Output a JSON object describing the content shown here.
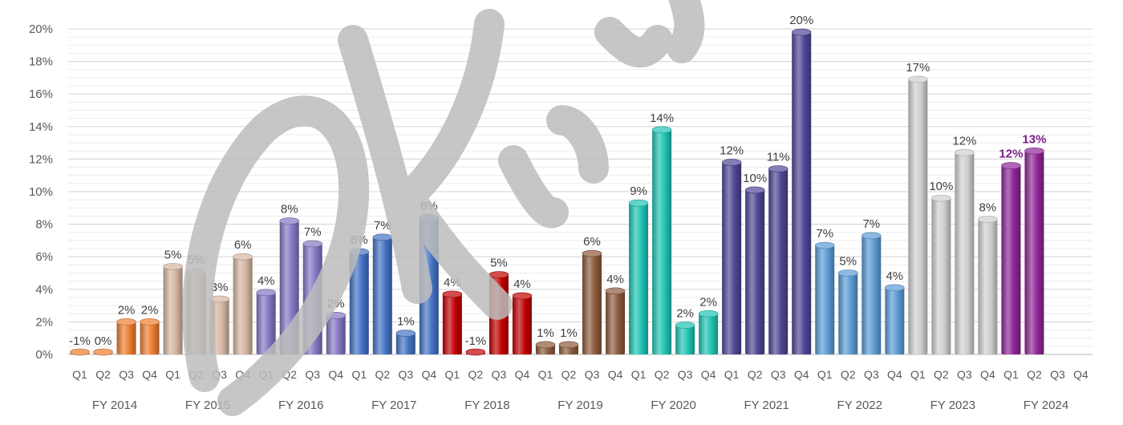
{
  "chart_data": {
    "type": "bar",
    "title": "",
    "xlabel": "",
    "ylabel": "",
    "ylim": [
      0,
      20
    ],
    "ytick_labels": [
      "0%",
      "2%",
      "4%",
      "6%",
      "8%",
      "10%",
      "12%",
      "14%",
      "16%",
      "18%",
      "20%"
    ],
    "ytick_values": [
      0,
      2,
      4,
      6,
      8,
      10,
      12,
      14,
      16,
      18,
      20
    ],
    "grid": true,
    "legend": "none",
    "groups": [
      {
        "label": "FY 2014",
        "color": "#ed7d31",
        "quarters": [
          "Q1",
          "Q2",
          "Q3",
          "Q4"
        ],
        "values": [
          -1,
          0,
          2,
          2
        ],
        "labels": [
          "-1%",
          "0%",
          "2%",
          "2%"
        ]
      },
      {
        "label": "FY 2015",
        "color": "#d4b5a0",
        "quarters": [
          "Q1",
          "Q2",
          "Q3",
          "Q4"
        ],
        "values": [
          5.4,
          5.1,
          3.4,
          6
        ],
        "labels": [
          "5%",
          "5%",
          "3%",
          "6%"
        ]
      },
      {
        "label": "FY 2016",
        "color": "#8377c2",
        "quarters": [
          "Q1",
          "Q2",
          "Q3",
          "Q4"
        ],
        "values": [
          3.8,
          8.2,
          6.8,
          2.4
        ],
        "labels": [
          "4%",
          "8%",
          "7%",
          "2%"
        ]
      },
      {
        "label": "FY 2017",
        "color": "#4472c4",
        "quarters": [
          "Q1",
          "Q2",
          "Q3",
          "Q4"
        ],
        "values": [
          6.3,
          7.2,
          1.3,
          8.4
        ],
        "labels": [
          "6%",
          "7%",
          "1%",
          "8%"
        ]
      },
      {
        "label": "FY 2018",
        "color": "#c00000",
        "quarters": [
          "Q1",
          "Q2",
          "Q3",
          "Q4"
        ],
        "values": [
          3.7,
          -1,
          4.9,
          3.6
        ],
        "labels": [
          "4%",
          "-1%",
          "5%",
          "4%"
        ]
      },
      {
        "label": "FY 2019",
        "color": "#8c5a3c",
        "quarters": [
          "Q1",
          "Q2",
          "Q3",
          "Q4"
        ],
        "values": [
          0.6,
          0.6,
          6.2,
          3.9
        ],
        "labels": [
          "1%",
          "1%",
          "6%",
          "4%"
        ]
      },
      {
        "label": "FY 2020",
        "color": "#1fc4b4",
        "quarters": [
          "Q1",
          "Q2",
          "Q3",
          "Q4"
        ],
        "values": [
          9.3,
          13.8,
          1.8,
          2.5
        ],
        "labels": [
          "9%",
          "14%",
          "2%",
          "2%"
        ]
      },
      {
        "label": "FY 2021",
        "color": "#4e4694",
        "quarters": [
          "Q1",
          "Q2",
          "Q3",
          "Q4"
        ],
        "values": [
          11.8,
          10.1,
          11.4,
          19.8
        ],
        "labels": [
          "12%",
          "10%",
          "11%",
          "20%"
        ]
      },
      {
        "label": "FY 2022",
        "color": "#5b9bd5",
        "quarters": [
          "Q1",
          "Q2",
          "Q3",
          "Q4"
        ],
        "values": [
          6.7,
          5,
          7.3,
          4.1
        ],
        "labels": [
          "7%",
          "5%",
          "7%",
          "4%"
        ]
      },
      {
        "label": "FY 2023",
        "color": "#cfcfcf",
        "quarters": [
          "Q1",
          "Q2",
          "Q3",
          "Q4"
        ],
        "values": [
          16.9,
          9.6,
          12.4,
          8.3
        ],
        "labels": [
          "17%",
          "10%",
          "12%",
          "8%"
        ]
      },
      {
        "label": "FY 2024",
        "color": "#8e2596",
        "quarters": [
          "Q1",
          "Q2",
          "Q3",
          "Q4"
        ],
        "values": [
          11.6,
          12.5,
          null,
          null
        ],
        "labels": [
          "12%",
          "13%",
          "",
          ""
        ]
      }
    ],
    "highlight_label_color": "#7a1f8a",
    "watermark_letters": "DKR"
  }
}
